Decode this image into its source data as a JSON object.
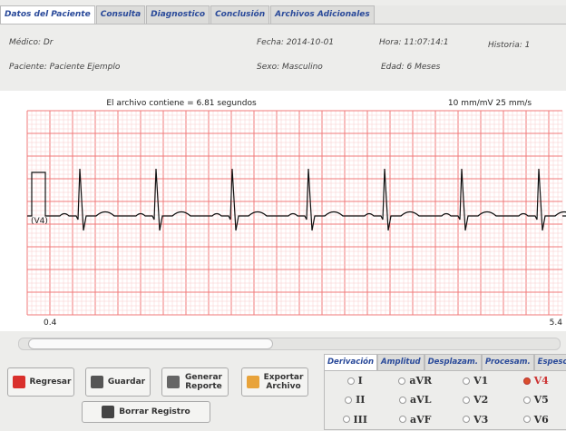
{
  "tabs": [
    "Datos del Paciente",
    "Consulta",
    "Diagnostico",
    "Conclusión",
    "Archivos Adicionales"
  ],
  "patient": {
    "medico": "Médico: Dr",
    "fecha": "Fecha: 2014-10-01",
    "hora": "Hora: 11:07:14:1",
    "historia": "Historia: 1",
    "paciente": "Paciente:  Paciente Ejemplo",
    "sexo": "Sexo: Masculino",
    "edad": "Edad: 6 Meses"
  },
  "ecg": {
    "info": "El archivo contiene = 6.81 segundos",
    "scale": "10 mm/mV  25 mm/s",
    "lead": "(V4)",
    "start": "0.4",
    "end": "5.4"
  },
  "buttons": [
    "Regresar",
    "Guardar",
    "Generar Reporte",
    "Exportar Archivo",
    "Borrar Registro"
  ],
  "lead_tabs": [
    "Derivación",
    "Amplitud",
    "Desplazam.",
    "Procesam.",
    "Espesor"
  ],
  "leads": [
    [
      "I",
      "aVR",
      "V1",
      "V4"
    ],
    [
      "II",
      "aVL",
      "V2",
      "V5"
    ],
    [
      "III",
      "aVF",
      "V3",
      "V6"
    ]
  ],
  "selected_lead": "V4"
}
